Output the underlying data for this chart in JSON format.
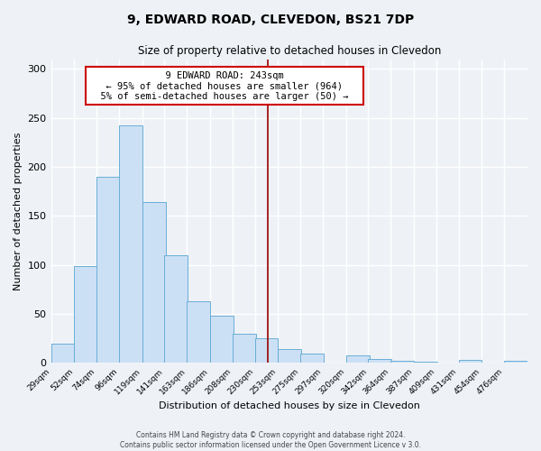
{
  "title": "9, EDWARD ROAD, CLEVEDON, BS21 7DP",
  "subtitle": "Size of property relative to detached houses in Clevedon",
  "xlabel": "Distribution of detached houses by size in Clevedon",
  "ylabel": "Number of detached properties",
  "bar_color": "#cce0f5",
  "bar_edge_color": "#6aaed6",
  "background_color": "#eef2f7",
  "plot_bg_color": "#eef2f7",
  "grid_color": "#ffffff",
  "bin_labels": [
    "29sqm",
    "52sqm",
    "74sqm",
    "96sqm",
    "119sqm",
    "141sqm",
    "163sqm",
    "186sqm",
    "208sqm",
    "230sqm",
    "253sqm",
    "275sqm",
    "297sqm",
    "320sqm",
    "342sqm",
    "364sqm",
    "387sqm",
    "409sqm",
    "431sqm",
    "454sqm",
    "476sqm"
  ],
  "bin_edges": [
    29,
    52,
    74,
    96,
    119,
    141,
    163,
    186,
    208,
    230,
    253,
    275,
    297,
    320,
    342,
    364,
    387,
    409,
    431,
    454,
    476
  ],
  "bin_width": 23,
  "values": [
    20,
    99,
    190,
    242,
    164,
    110,
    63,
    48,
    30,
    25,
    14,
    10,
    0,
    8,
    4,
    2,
    1,
    0,
    3,
    0,
    2
  ],
  "ylim": [
    0,
    310
  ],
  "yticks": [
    0,
    50,
    100,
    150,
    200,
    250,
    300
  ],
  "property_value": 243,
  "annotation_title": "9 EDWARD ROAD: 243sqm",
  "annotation_line1": "← 95% of detached houses are smaller (964)",
  "annotation_line2": "5% of semi-detached houses are larger (50) →",
  "annotation_box_color": "#ffffff",
  "annotation_border_color": "#cc0000",
  "vline_color": "#990000",
  "vline_x": 243,
  "footer_line1": "Contains HM Land Registry data © Crown copyright and database right 2024.",
  "footer_line2": "Contains public sector information licensed under the Open Government Licence v 3.0."
}
